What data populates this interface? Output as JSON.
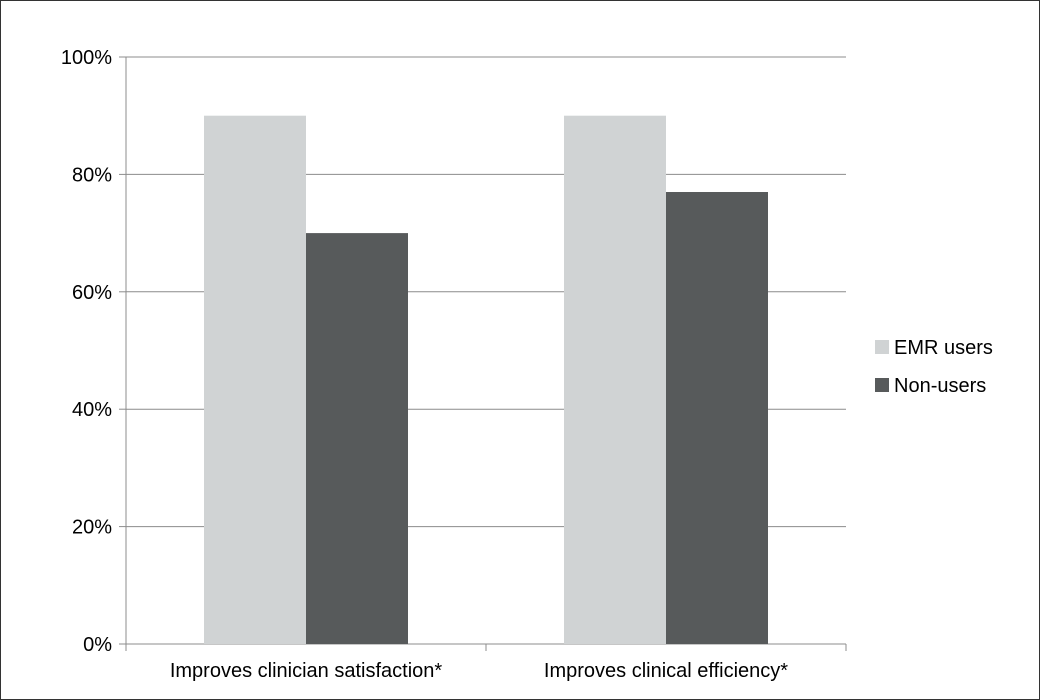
{
  "chart_data": {
    "type": "bar",
    "categories": [
      "Improves clinician satisfaction*",
      "Improves clinical efficiency*"
    ],
    "series": [
      {
        "name": "EMR users",
        "values": [
          90,
          90
        ],
        "color": "#d0d3d4"
      },
      {
        "name": "Non-users",
        "values": [
          70,
          77
        ],
        "color": "#575a5b"
      }
    ],
    "ylim": [
      0,
      100
    ],
    "yticks": [
      0,
      20,
      40,
      60,
      80,
      100
    ],
    "ytick_format": "%",
    "grid": true,
    "legend_position": "right",
    "title": "",
    "xlabel": "",
    "ylabel": ""
  }
}
